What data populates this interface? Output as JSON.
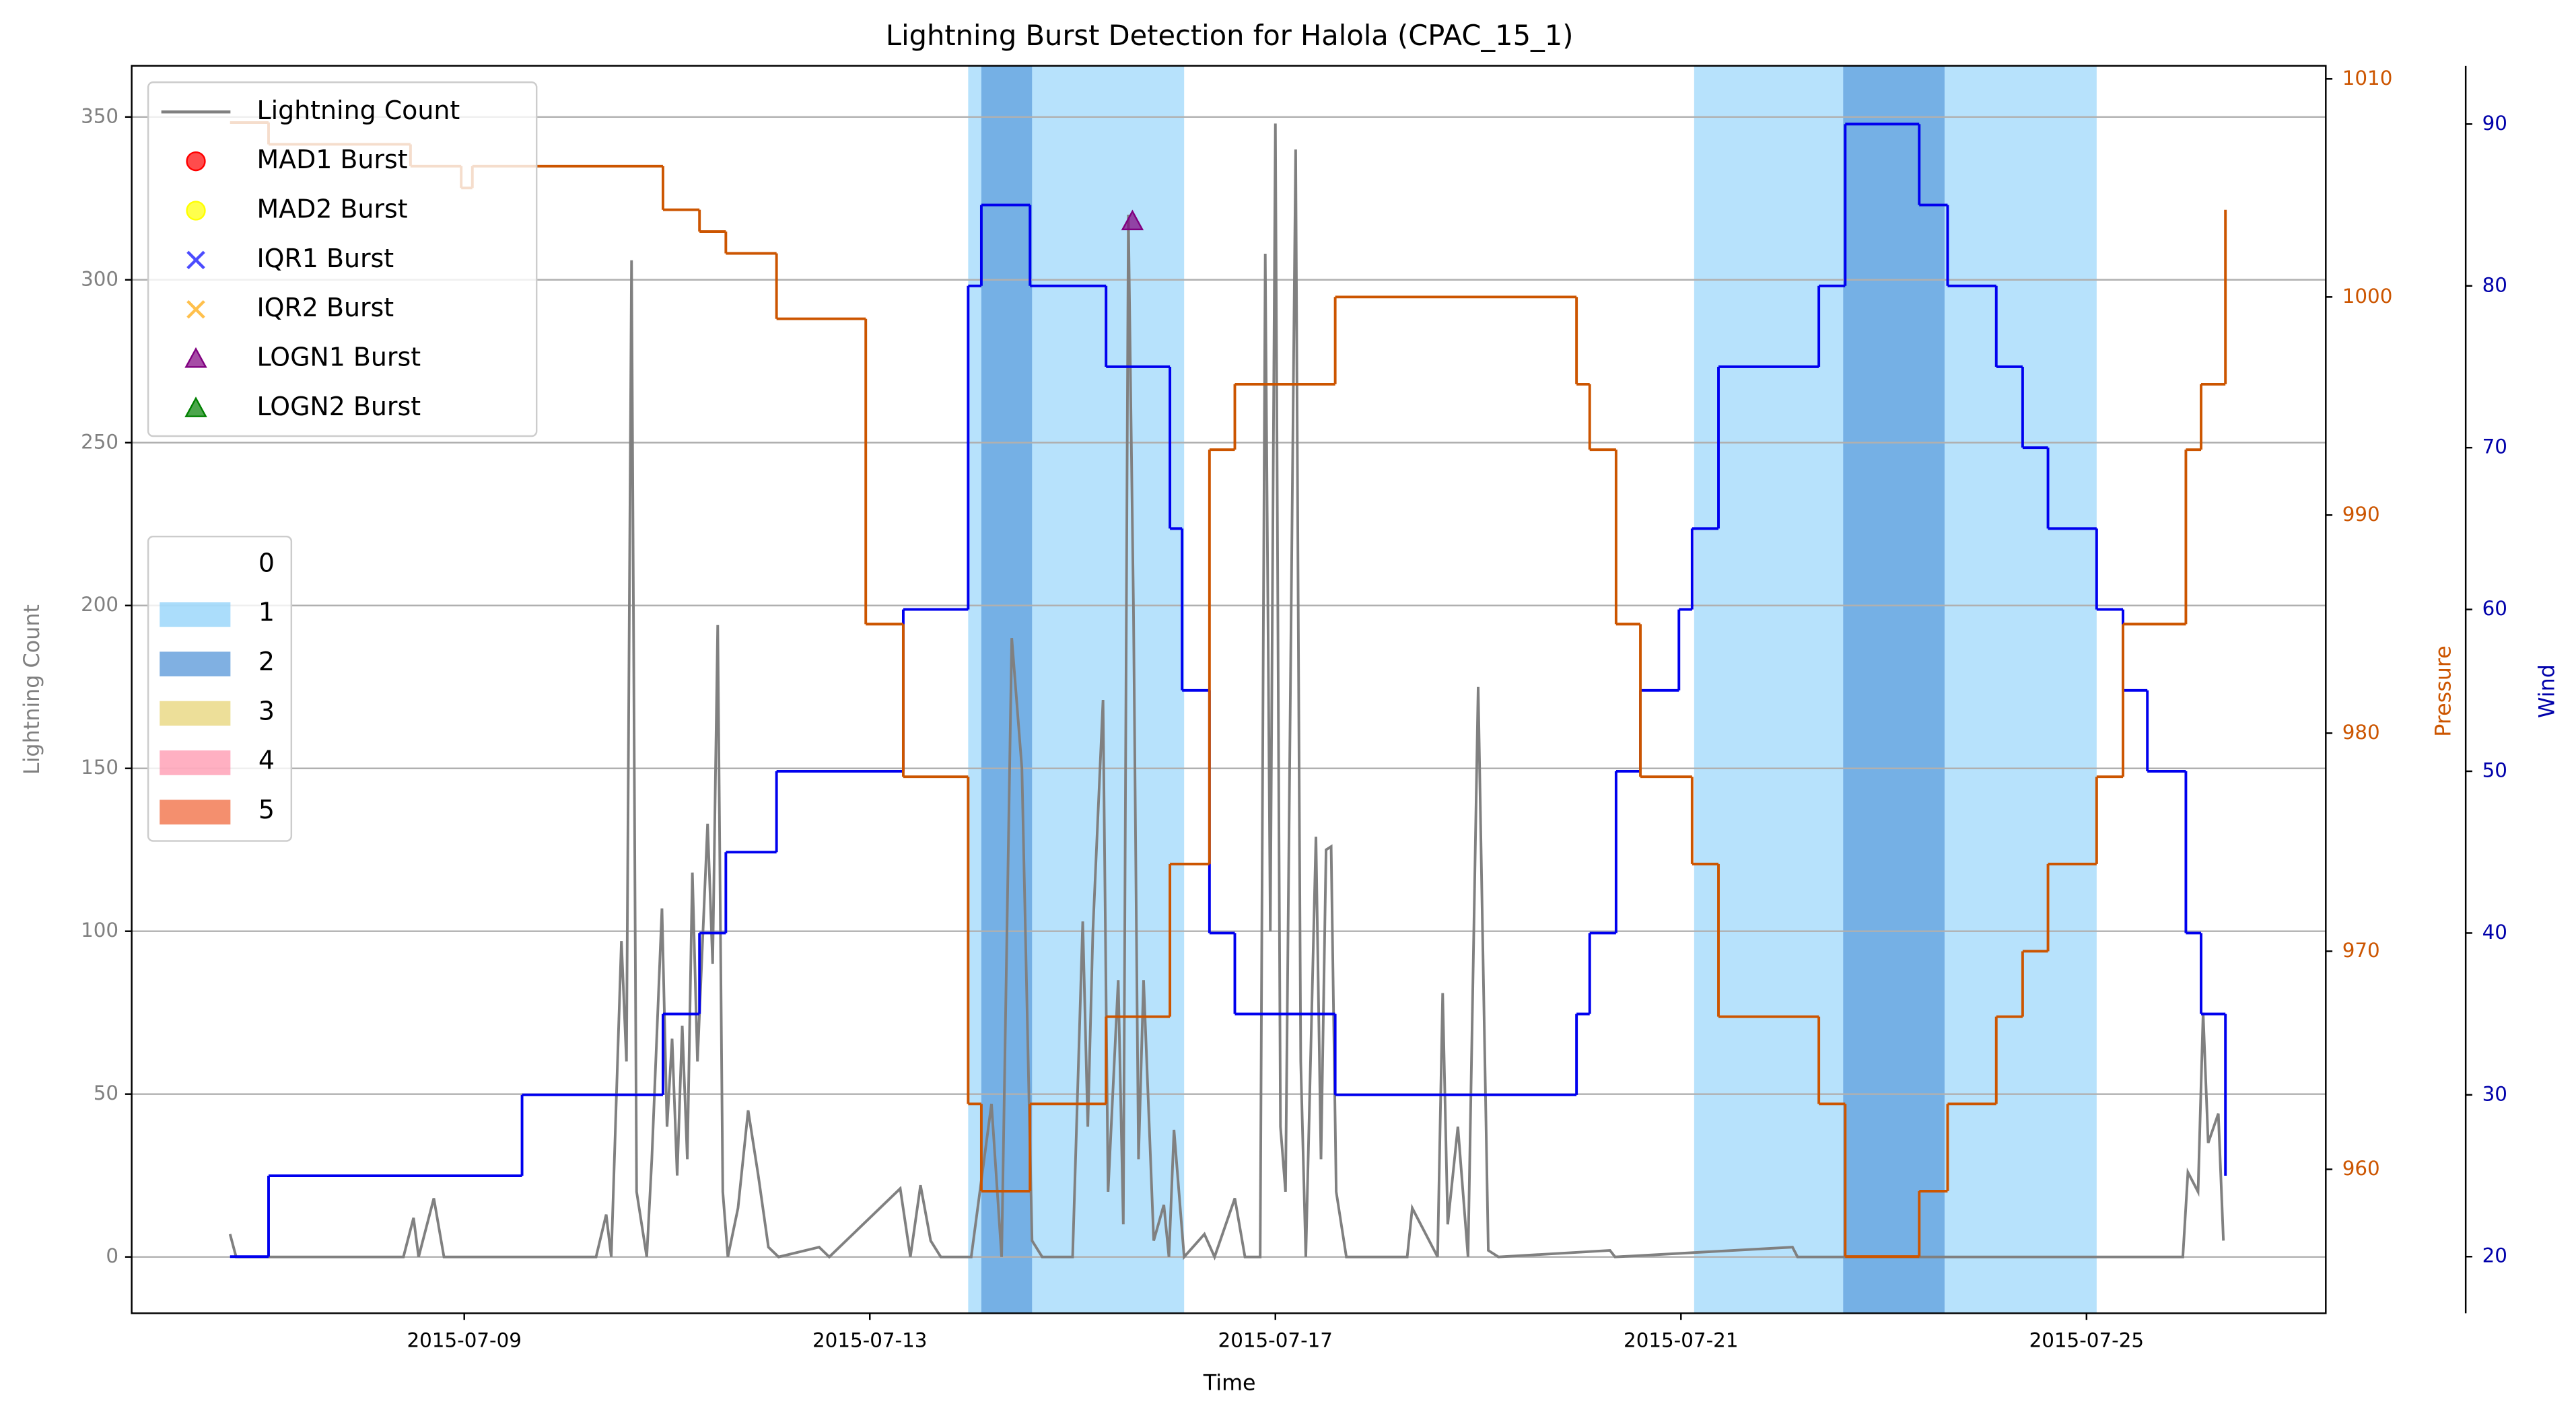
{
  "chart_data": {
    "type": "line",
    "title": "Lightning Burst Detection for Halola (CPAC_15_1)",
    "x_label": "Time",
    "y_label": "Lightning Count",
    "y2_label": "Pressure",
    "y3_label": "Wind",
    "xlim": [
      5.72,
      27.36
    ],
    "xticks": [
      {
        "value": 9,
        "label": "2015-07-09"
      },
      {
        "value": 13,
        "label": "2015-07-13"
      },
      {
        "value": 17,
        "label": "2015-07-17"
      },
      {
        "value": 21,
        "label": "2015-07-21"
      },
      {
        "value": 25,
        "label": "2015-07-25"
      }
    ],
    "ylim": [
      -17.3,
      365.7
    ],
    "yticks": [
      0,
      50,
      100,
      150,
      200,
      250,
      300,
      350
    ],
    "y2lim": [
      953.4,
      1010.6
    ],
    "y2ticks": [
      960,
      970,
      980,
      990,
      1000,
      1010
    ],
    "y3lim": [
      16.5,
      93.6
    ],
    "y3ticks": [
      20,
      30,
      40,
      50,
      60,
      70,
      80,
      90
    ],
    "grid": true,
    "legend": "upper left",
    "series": [
      {
        "name": "Lightning Count",
        "color": "#808080",
        "axis": "y",
        "x": [
          6.69,
          6.75,
          8.4,
          8.5,
          8.55,
          8.7,
          8.8,
          10.3,
          10.4,
          10.45,
          10.55,
          10.6,
          10.65,
          10.7,
          10.8,
          10.85,
          10.95,
          11.0,
          11.05,
          11.1,
          11.15,
          11.2,
          11.25,
          11.3,
          11.4,
          11.45,
          11.5,
          11.55,
          11.6,
          11.7,
          11.8,
          11.9,
          12.0,
          12.1,
          12.5,
          12.6,
          13.3,
          13.4,
          13.5,
          13.6,
          13.7,
          14.0,
          14.2,
          14.3,
          14.4,
          14.5,
          14.6,
          14.7,
          15.0,
          15.1,
          15.15,
          15.2,
          15.3,
          15.35,
          15.45,
          15.5,
          15.55,
          15.6,
          15.65,
          15.7,
          15.8,
          15.9,
          15.95,
          16.0,
          16.1,
          16.3,
          16.4,
          16.6,
          16.7,
          16.85,
          16.9,
          16.95,
          17.0,
          17.05,
          17.1,
          17.2,
          17.25,
          17.3,
          17.4,
          17.45,
          17.5,
          17.55,
          17.6,
          17.7,
          18.3,
          18.35,
          18.6,
          18.65,
          18.7,
          18.8,
          18.9,
          19.0,
          19.1,
          19.2,
          20.3,
          20.35,
          22.1,
          22.15,
          25.95,
          26.0,
          26.1,
          26.15,
          26.2,
          26.3,
          26.35
        ],
        "values": [
          7,
          0,
          0,
          12,
          0,
          18,
          0,
          0,
          13,
          0,
          97,
          60,
          306,
          20,
          0,
          30,
          107,
          40,
          67,
          25,
          71,
          30,
          118,
          60,
          133,
          90,
          194,
          20,
          0,
          15,
          45,
          25,
          3,
          0,
          3,
          0,
          21,
          0,
          22,
          5,
          0,
          0,
          47,
          0,
          190,
          150,
          5,
          0,
          0,
          103,
          40,
          100,
          171,
          20,
          85,
          10,
          320,
          200,
          30,
          85,
          5,
          16,
          0,
          39,
          0,
          7,
          0,
          18,
          0,
          0,
          308,
          100,
          348,
          40,
          20,
          340,
          60,
          0,
          129,
          30,
          125,
          126,
          20,
          0,
          0,
          15,
          0,
          81,
          10,
          40,
          0,
          175,
          2,
          0,
          2,
          0,
          3,
          0,
          0,
          26,
          20,
          75,
          35,
          44,
          5
        ]
      },
      {
        "name": "Wind",
        "color": "#0000ee",
        "axis": "y3",
        "drawstyle": "steps-post",
        "x": [
          6.69,
          7.07,
          9.57,
          10.96,
          11.32,
          11.58,
          12.08,
          13.33,
          13.97,
          14.1,
          14.58,
          15.33,
          15.96,
          16.08,
          16.35,
          16.6,
          17.59,
          19.97,
          20.1,
          20.36,
          20.6,
          20.98,
          21.11,
          21.37,
          22.36,
          22.62,
          23.35,
          23.63,
          24.11,
          24.37,
          24.62,
          25.1,
          25.36,
          25.6,
          25.98,
          26.13,
          26.37
        ],
        "values": [
          20,
          25,
          30,
          35,
          40,
          45,
          50,
          60,
          80,
          85,
          80,
          75,
          65,
          55,
          40,
          35,
          30,
          35,
          40,
          50,
          55,
          60,
          65,
          75,
          80,
          90,
          85,
          80,
          75,
          70,
          65,
          60,
          55,
          50,
          40,
          35,
          25
        ]
      },
      {
        "name": "Pressure",
        "color": "#cc5500",
        "axis": "y2",
        "drawstyle": "steps-post",
        "x": [
          6.69,
          7.07,
          8.47,
          8.97,
          9.08,
          10.96,
          11.32,
          11.58,
          12.08,
          12.96,
          13.33,
          13.97,
          14.1,
          14.58,
          15.33,
          15.96,
          16.35,
          16.6,
          17.59,
          19.97,
          20.1,
          20.36,
          20.6,
          21.11,
          21.37,
          22.36,
          22.62,
          23.35,
          23.63,
          24.11,
          24.37,
          24.62,
          25.1,
          25.36,
          25.98,
          26.13,
          26.37
        ],
        "values": [
          1008,
          1007,
          1006,
          1005,
          1006,
          1004,
          1003,
          1002,
          999,
          985,
          978,
          963,
          959,
          963,
          967,
          974,
          993,
          996,
          1000,
          996,
          993,
          985,
          978,
          974,
          967,
          963,
          956,
          959,
          963,
          967,
          970,
          974,
          978,
          985,
          993,
          996,
          1004
        ]
      }
    ],
    "bursts": [
      {
        "name": "MAD1 Burst",
        "color": "#ff0000",
        "marker": "circle",
        "x": [],
        "values": []
      },
      {
        "name": "MAD2 Burst",
        "color": "#ffff00",
        "marker": "circle",
        "x": [],
        "values": []
      },
      {
        "name": "IQR1 Burst",
        "color": "#0000ff",
        "marker": "x",
        "x": [],
        "values": []
      },
      {
        "name": "IQR2 Burst",
        "color": "#ffa500",
        "marker": "x",
        "x": [],
        "values": []
      },
      {
        "name": "LOGN1 Burst",
        "color": "#800080",
        "marker": "triangle",
        "x": [
          15.59
        ],
        "values": [
          318
        ]
      },
      {
        "name": "LOGN2 Burst",
        "color": "#008000",
        "marker": "triangle",
        "x": [],
        "values": []
      }
    ],
    "intensity_levels": [
      {
        "label": "0",
        "color": "#ffffff"
      },
      {
        "label": "1",
        "color": "#87cefa"
      },
      {
        "label": "2",
        "color": "#4a8fd6"
      },
      {
        "label": "3",
        "color": "#e6d26e"
      },
      {
        "label": "4",
        "color": "#ff8fa8"
      },
      {
        "label": "5",
        "color": "#ef5f30"
      }
    ],
    "spans": [
      {
        "start": 13.97,
        "end": 16.1,
        "level": 1
      },
      {
        "start": 14.1,
        "end": 14.6,
        "level": 2
      },
      {
        "start": 21.13,
        "end": 25.1,
        "level": 1
      },
      {
        "start": 22.6,
        "end": 23.6,
        "level": 2
      }
    ]
  }
}
